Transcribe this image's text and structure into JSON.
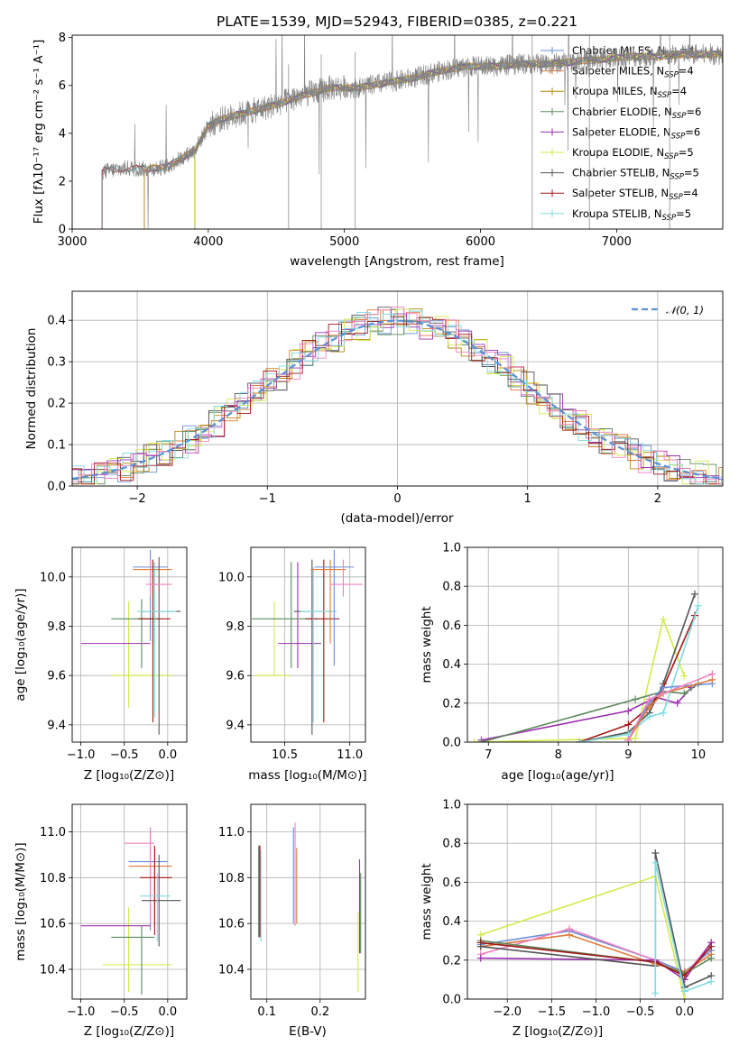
{
  "colors": {
    "Chabrier MILES": "#6a8fd6",
    "Salpeter MILES": "#e07a3a",
    "Kroupa MILES": "#b8860b",
    "Chabrier ELODIE": "#5e8a5e",
    "Salpeter ELODIE": "#9b30b0",
    "Kroupa ELODIE": "#d4ea4a",
    "Chabrier STELIB": "#555555",
    "Salpeter STELIB": "#a01818",
    "Kroupa STELIB": "#7fdbe0",
    "pink": "#ee82c0",
    "data": "#808080",
    "gauss": "#5b8fd6"
  },
  "chart_data": [
    {
      "id": "spectrum",
      "type": "line",
      "title": "PLATE=1539, MJD=52943, FIBERID=0385, z=0.221",
      "xlabel": "wavelength [Angstrom, rest frame]",
      "ylabel": "Flux [fλ10⁻¹⁷ erg cm⁻² s⁻¹ A⁻¹]",
      "xlim": [
        3000,
        7780
      ],
      "ylim": [
        0,
        8.1
      ],
      "xticks": [
        3000,
        4000,
        5000,
        6000,
        7000
      ],
      "yticks": [
        0,
        2,
        4,
        6,
        8
      ],
      "grid": false,
      "legend_position": "right",
      "legend": [
        "Chabrier MILES, N_SSP=4",
        "Salpeter MILES, N_SSP=4",
        "Kroupa MILES, N_SSP=4",
        "Chabrier ELODIE, N_SSP=6",
        "Salpeter ELODIE, N_SSP=6",
        "Kroupa ELODIE, N_SSP=5",
        "Chabrier STELIB, N_SSP=5",
        "Salpeter STELIB, N_SSP=4",
        "Kroupa STELIB, N_SSP=5"
      ],
      "continuum_x": [
        3220,
        3400,
        3550,
        3700,
        3900,
        4000,
        4100,
        4300,
        4500,
        4700,
        4900,
        5100,
        5300,
        5500,
        5700,
        5900,
        6100,
        6300,
        6500,
        6700,
        6900,
        7100,
        7300,
        7500,
        7780
      ],
      "continuum_y": [
        2.4,
        2.55,
        2.5,
        2.6,
        3.3,
        4.3,
        4.6,
        4.9,
        5.2,
        5.6,
        5.9,
        5.9,
        6.1,
        6.3,
        6.6,
        6.8,
        6.8,
        6.9,
        6.9,
        7.0,
        7.1,
        7.2,
        7.2,
        7.3,
        7.3
      ],
      "model_start_wavelength": {
        "Kroupa STELIB": 3220,
        "Chabrier STELIB": 3220,
        "Salpeter STELIB": 3220,
        "Chabrier MILES": 3530,
        "Salpeter MILES": 3530,
        "Kroupa MILES": 3530,
        "Chabrier ELODIE": 3900,
        "Salpeter ELODIE": 3900,
        "Kroupa ELODIE": 3900
      }
    },
    {
      "id": "residuals",
      "type": "step",
      "xlabel": "(data-model)/error",
      "ylabel": "Normed distribution",
      "xlim": [
        -2.5,
        2.5
      ],
      "ylim": [
        0,
        0.47
      ],
      "xticks": [
        -2,
        -1,
        0,
        1,
        2
      ],
      "yticks": [
        0.0,
        0.1,
        0.2,
        0.3,
        0.4
      ],
      "grid": true,
      "legend_position": "top-right",
      "legend": [
        "𝒩(0, 1)"
      ],
      "bin_width": 0.1
    },
    {
      "id": "age-vs-Z",
      "type": "errorbar",
      "xlabel": "Z [log₁₀(Z/Z⊙)]",
      "ylabel": "age  [log₁₀(age/yr)]",
      "xlim": [
        -1.1,
        0.22
      ],
      "ylim": [
        9.33,
        10.12
      ],
      "xticks": [
        -1.0,
        -0.5,
        0.0
      ],
      "yticks": [
        9.4,
        9.6,
        9.8,
        10.0
      ],
      "grid": true,
      "series": [
        {
          "name": "Chabrier MILES",
          "x": -0.2,
          "xerr": [
            0.2,
            0.2
          ],
          "y": 10.04,
          "yerr": [
            0.3,
            0.07
          ]
        },
        {
          "name": "Salpeter MILES",
          "x": -0.15,
          "xerr": [
            0.25,
            0.2
          ],
          "y": 10.03,
          "yerr": [
            0.3,
            0.03
          ]
        },
        {
          "name": "Kroupa ELODIE",
          "x": -0.45,
          "xerr": [
            0.2,
            0.5
          ],
          "y": 9.6,
          "yerr": [
            0.13,
            0.3
          ]
        },
        {
          "name": "Salpeter ELODIE",
          "x": -0.5,
          "xerr": [
            0.5,
            0.3
          ],
          "y": 9.73,
          "yerr": [
            0.0,
            0.0
          ]
        },
        {
          "name": "Chabrier ELODIE",
          "x": -0.3,
          "xerr": [
            0.35,
            0.15
          ],
          "y": 9.83,
          "yerr": [
            0.2,
            0.08
          ]
        },
        {
          "name": "Chabrier STELIB",
          "x": -0.1,
          "xerr": [
            0.2,
            0.25
          ],
          "y": 9.86,
          "yerr": [
            0.5,
            0.22
          ]
        },
        {
          "name": "Salpeter STELIB",
          "x": -0.17,
          "xerr": [
            0.17,
            0.2
          ],
          "y": 9.83,
          "yerr": [
            0.42,
            0.24
          ]
        },
        {
          "name": "Kroupa STELIB",
          "x": -0.15,
          "xerr": [
            0.2,
            0.25
          ],
          "y": 9.86,
          "yerr": [
            0.43,
            0.2
          ]
        },
        {
          "name": "pink",
          "x": -0.2,
          "xerr": [
            0.05,
            0.25
          ],
          "y": 9.97,
          "yerr": [
            0.05,
            0.1
          ]
        }
      ]
    },
    {
      "id": "age-vs-mass",
      "type": "errorbar",
      "xlabel": "mass [log₁₀(M/M⊙)]",
      "ylabel": "",
      "xlim": [
        10.24,
        11.12
      ],
      "ylim": [
        9.33,
        10.12
      ],
      "xticks": [
        10.5,
        11.0
      ],
      "yticks": [
        9.4,
        9.6,
        9.8,
        10.0
      ],
      "grid": true,
      "series": [
        {
          "name": "Kroupa ELODIE",
          "x": 10.42,
          "xerr": [
            0.15,
            0.12
          ],
          "y": 9.6,
          "yerr": [
            0.0,
            0.3
          ]
        },
        {
          "name": "Salpeter ELODIE",
          "x": 10.6,
          "xerr": [
            0.15,
            0.18
          ],
          "y": 9.73,
          "yerr": [
            0.1,
            0.33
          ]
        },
        {
          "name": "Chabrier ELODIE",
          "x": 10.55,
          "xerr": [
            0.3,
            0.2
          ],
          "y": 9.83,
          "yerr": [
            0.2,
            0.23
          ]
        },
        {
          "name": "Chabrier STELIB",
          "x": 10.71,
          "xerr": [
            0.14,
            0.15
          ],
          "y": 9.86,
          "yerr": [
            0.5,
            0.21
          ]
        },
        {
          "name": "Salpeter STELIB",
          "x": 10.8,
          "xerr": [
            0.14,
            0.12
          ],
          "y": 9.83,
          "yerr": [
            0.42,
            0.24
          ]
        },
        {
          "name": "Kroupa STELIB",
          "x": 10.72,
          "xerr": [
            0.1,
            0.18
          ],
          "y": 9.86,
          "yerr": [
            0.45,
            0.18
          ]
        },
        {
          "name": "Chabrier MILES",
          "x": 10.88,
          "xerr": [
            0.15,
            0.15
          ],
          "y": 10.04,
          "yerr": [
            0.4,
            0.07
          ]
        },
        {
          "name": "Salpeter MILES",
          "x": 10.85,
          "xerr": [
            0.15,
            0.12
          ],
          "y": 10.03,
          "yerr": [
            0.3,
            0.04
          ]
        },
        {
          "name": "pink",
          "x": 10.95,
          "xerr": [
            0.1,
            0.15
          ],
          "y": 9.97,
          "yerr": [
            0.05,
            0.1
          ]
        }
      ]
    },
    {
      "id": "weight-vs-age",
      "type": "line",
      "xlabel": "age  [log₁₀(age/yr)]",
      "ylabel": "mass weight",
      "xlim": [
        6.7,
        10.35
      ],
      "ylim": [
        0,
        1.0
      ],
      "xticks": [
        7,
        8,
        9,
        10
      ],
      "yticks": [
        0.0,
        0.2,
        0.4,
        0.6,
        0.8,
        1.0
      ],
      "grid": true,
      "series": [
        {
          "name": "Kroupa ELODIE",
          "x": [
            6.8,
            9.1,
            9.5,
            9.8
          ],
          "y": [
            0.0,
            0.02,
            0.63,
            0.34
          ]
        },
        {
          "name": "Salpeter ELODIE",
          "x": [
            6.9,
            9.0,
            9.4,
            9.7,
            9.9
          ],
          "y": [
            0.01,
            0.16,
            0.23,
            0.2,
            0.28
          ]
        },
        {
          "name": "Chabrier ELODIE",
          "x": [
            6.9,
            9.1,
            9.5,
            9.8,
            10.0
          ],
          "y": [
            0.0,
            0.22,
            0.26,
            0.25,
            0.3
          ]
        },
        {
          "name": "Chabrier STELIB",
          "x": [
            8.3,
            9.0,
            9.3,
            9.5,
            9.95
          ],
          "y": [
            0.0,
            0.05,
            0.15,
            0.3,
            0.76
          ]
        },
        {
          "name": "Salpeter STELIB",
          "x": [
            8.3,
            9.0,
            9.3,
            9.5,
            9.95
          ],
          "y": [
            0.0,
            0.09,
            0.18,
            0.28,
            0.65
          ]
        },
        {
          "name": "Kroupa STELIB",
          "x": [
            8.3,
            9.0,
            9.3,
            9.5,
            10.0
          ],
          "y": [
            0.0,
            0.04,
            0.13,
            0.15,
            0.7
          ]
        },
        {
          "name": "Chabrier MILES",
          "x": [
            9.0,
            9.3,
            9.5,
            10.2
          ],
          "y": [
            0.01,
            0.2,
            0.28,
            0.3
          ]
        },
        {
          "name": "Salpeter MILES",
          "x": [
            9.0,
            9.3,
            9.5,
            10.2
          ],
          "y": [
            0.01,
            0.18,
            0.25,
            0.32
          ]
        },
        {
          "name": "pink",
          "x": [
            9.0,
            9.3,
            9.5,
            10.2
          ],
          "y": [
            0.01,
            0.22,
            0.25,
            0.35
          ]
        }
      ]
    },
    {
      "id": "mass-vs-Z",
      "type": "errorbar",
      "xlabel": "Z [log₁₀(Z/Z⊙)]",
      "ylabel": "mass [log₁₀(M/M⊙)]",
      "xlim": [
        -1.1,
        0.22
      ],
      "ylim": [
        10.27,
        11.12
      ],
      "xticks": [
        -1.0,
        -0.5,
        0.0
      ],
      "yticks": [
        10.4,
        10.6,
        10.8,
        11.0
      ],
      "grid": true,
      "series": [
        {
          "name": "Chabrier MILES",
          "x": -0.2,
          "xerr": [
            0.25,
            0.2
          ],
          "y": 10.87,
          "yerr": [
            0.3,
            0.15
          ]
        },
        {
          "name": "pink",
          "x": -0.2,
          "xerr": [
            0.3,
            0.05
          ],
          "y": 10.95,
          "yerr": [
            0.35,
            0.07
          ]
        },
        {
          "name": "Salpeter MILES",
          "x": -0.15,
          "xerr": [
            0.3,
            0.2
          ],
          "y": 10.85,
          "yerr": [
            0.25,
            0.08
          ]
        },
        {
          "name": "Kroupa ELODIE",
          "x": -0.45,
          "xerr": [
            0.3,
            0.5
          ],
          "y": 10.42,
          "yerr": [
            0.12,
            0.25
          ]
        },
        {
          "name": "Salpeter ELODIE",
          "x": -0.5,
          "xerr": [
            0.5,
            0.3
          ],
          "y": 10.59,
          "yerr": [
            0.0,
            0.0
          ]
        },
        {
          "name": "Chabrier ELODIE",
          "x": -0.3,
          "xerr": [
            0.35,
            0.15
          ],
          "y": 10.54,
          "yerr": [
            0.25,
            0.05
          ]
        },
        {
          "name": "Chabrier STELIB",
          "x": -0.1,
          "xerr": [
            0.2,
            0.25
          ],
          "y": 10.7,
          "yerr": [
            0.2,
            0.2
          ]
        },
        {
          "name": "Salpeter STELIB",
          "x": -0.15,
          "xerr": [
            0.17,
            0.2
          ],
          "y": 10.8,
          "yerr": [
            0.25,
            0.14
          ]
        },
        {
          "name": "Kroupa STELIB",
          "x": -0.12,
          "xerr": [
            0.2,
            0.15
          ],
          "y": 10.72,
          "yerr": [
            0.2,
            0.1
          ]
        }
      ]
    },
    {
      "id": "mass-vs-EBV",
      "type": "errorbar",
      "xlabel": "E(B-V)",
      "ylabel": "",
      "xlim": [
        0.07,
        0.285
      ],
      "ylim": [
        10.27,
        11.12
      ],
      "xticks": [
        0.1,
        0.2
      ],
      "yticks": [
        10.4,
        10.6,
        10.8,
        11.0
      ],
      "grid": true,
      "series": [
        {
          "name": "Chabrier STELIB",
          "x": 0.085,
          "xerr": [
            0,
            0
          ],
          "y": 10.74,
          "yerr": [
            0.2,
            0.2
          ]
        },
        {
          "name": "Salpeter STELIB",
          "x": 0.087,
          "xerr": [
            0,
            0
          ],
          "y": 10.74,
          "yerr": [
            0.2,
            0.2
          ]
        },
        {
          "name": "Kroupa STELIB",
          "x": 0.089,
          "xerr": [
            0,
            0
          ],
          "y": 10.72,
          "yerr": [
            0.2,
            0.2
          ]
        },
        {
          "name": "Chabrier MILES",
          "x": 0.15,
          "xerr": [
            0,
            0
          ],
          "y": 10.8,
          "yerr": [
            0.2,
            0.22
          ]
        },
        {
          "name": "pink",
          "x": 0.153,
          "xerr": [
            0,
            0
          ],
          "y": 10.84,
          "yerr": [
            0.25,
            0.2
          ]
        },
        {
          "name": "Salpeter MILES",
          "x": 0.156,
          "xerr": [
            0,
            0
          ],
          "y": 10.78,
          "yerr": [
            0.18,
            0.15
          ]
        },
        {
          "name": "Salpeter ELODIE",
          "x": 0.274,
          "xerr": [
            0,
            0
          ],
          "y": 10.67,
          "yerr": [
            0.2,
            0.21
          ]
        },
        {
          "name": "Chabrier ELODIE",
          "x": 0.276,
          "xerr": [
            0,
            0
          ],
          "y": 10.62,
          "yerr": [
            0.15,
            0.2
          ]
        },
        {
          "name": "Kroupa ELODIE",
          "x": 0.271,
          "xerr": [
            0,
            0
          ],
          "y": 10.5,
          "yerr": [
            0.2,
            0.15
          ]
        }
      ]
    },
    {
      "id": "weight-vs-Z",
      "type": "line",
      "xlabel": "Z [log₁₀(Z/Z⊙)]",
      "ylabel": "mass weight",
      "xlim": [
        -2.45,
        0.43
      ],
      "ylim": [
        0,
        1.0
      ],
      "xticks": [
        -2.0,
        -1.5,
        -1.0,
        -0.5,
        0.0
      ],
      "yticks": [
        0.0,
        0.2,
        0.4,
        0.6,
        0.8,
        1.0
      ],
      "grid": true,
      "series": [
        {
          "name": "Kroupa ELODIE",
          "x": [
            -2.3,
            -0.33,
            0.0
          ],
          "y": [
            0.33,
            0.63,
            0.0
          ]
        },
        {
          "name": "Chabrier MILES",
          "x": [
            -2.3,
            -1.3,
            -0.33,
            0.0,
            0.3
          ],
          "y": [
            0.28,
            0.35,
            0.2,
            0.14,
            0.25
          ]
        },
        {
          "name": "Salpeter MILES",
          "x": [
            -2.3,
            -1.3,
            -0.33,
            0.0,
            0.3
          ],
          "y": [
            0.27,
            0.33,
            0.18,
            0.14,
            0.23
          ]
        },
        {
          "name": "pink",
          "x": [
            -2.3,
            -1.3,
            -0.33,
            0.0,
            0.3
          ],
          "y": [
            0.23,
            0.36,
            0.2,
            0.12,
            0.29
          ]
        },
        {
          "name": "Salpeter ELODIE",
          "x": [
            -2.3,
            -0.33,
            0.0,
            0.3
          ],
          "y": [
            0.21,
            0.2,
            0.1,
            0.29
          ]
        },
        {
          "name": "Chabrier ELODIE",
          "x": [
            -2.3,
            -0.33,
            0.0,
            0.3
          ],
          "y": [
            0.3,
            0.19,
            0.13,
            0.21
          ]
        },
        {
          "name": "Salpeter STELIB",
          "x": [
            -2.3,
            -0.33,
            0.0,
            0.3
          ],
          "y": [
            0.29,
            0.19,
            0.12,
            0.27
          ]
        },
        {
          "name": "Chabrier STELIB",
          "x": [
            -2.3,
            -0.33,
            -0.33,
            0.0,
            0.3
          ],
          "y": [
            0.27,
            0.17,
            0.75,
            0.06,
            0.12
          ]
        },
        {
          "name": "Kroupa STELIB",
          "x": [
            -0.33,
            -0.33,
            0.0,
            0.3
          ],
          "y": [
            0.03,
            0.7,
            0.04,
            0.09
          ]
        }
      ]
    }
  ]
}
